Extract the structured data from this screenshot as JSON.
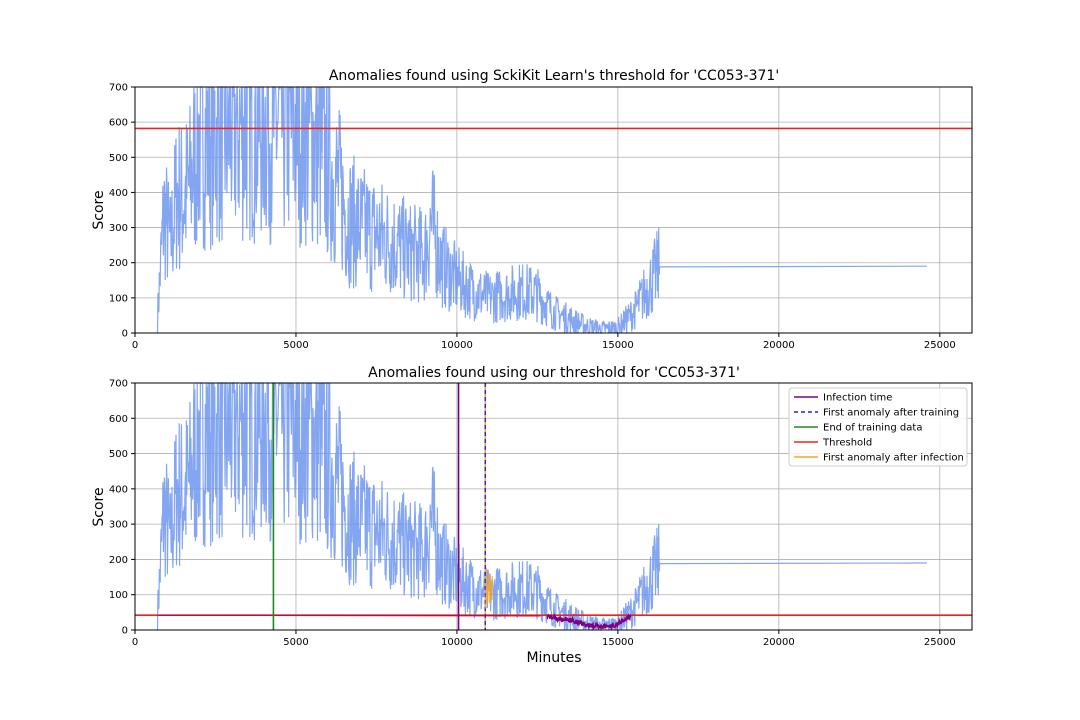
{
  "colors": {
    "score": "#6f97ee",
    "threshold": "#ee2222",
    "infection": "#800080",
    "first_after_training": "#2222ee",
    "end_training": "#228822",
    "first_after_infection": "#f5a623",
    "grid": "#b0b0b0"
  },
  "chart_data": [
    {
      "type": "line",
      "title": "Anomalies found using SckiKit Learn's threshold for 'CC053-371'",
      "xlabel": "",
      "ylabel": "Score",
      "xlim": [
        0,
        26000
      ],
      "ylim": [
        0,
        700
      ],
      "xticks": [
        "0",
        "5000",
        "10000",
        "15000",
        "20000",
        "25000"
      ],
      "yticks": [
        "0",
        "100",
        "200",
        "300",
        "400",
        "500",
        "600",
        "700"
      ],
      "grid": true,
      "threshold": 582,
      "series": [
        {
          "x": [
            700,
            900,
            1100,
            1300,
            1500,
            1700,
            2000,
            2500,
            3000,
            3500,
            4000,
            4500,
            5000,
            5500,
            6000,
            6300,
            6600,
            7000,
            7500,
            8000,
            8500,
            9000,
            9200,
            9500,
            10000,
            10500,
            11000,
            11500,
            12000,
            12500,
            13000,
            13500,
            14000,
            14500,
            15000,
            15500,
            16000,
            16300,
            20000,
            24600
          ],
          "y": [
            45,
            350,
            250,
            400,
            380,
            420,
            560,
            570,
            580,
            590,
            600,
            600,
            590,
            560,
            480,
            420,
            330,
            300,
            280,
            260,
            230,
            220,
            320,
            200,
            150,
            120,
            100,
            110,
            120,
            110,
            60,
            40,
            20,
            10,
            15,
            60,
            140,
            190,
            190,
            190
          ]
        }
      ]
    },
    {
      "type": "line",
      "title": "Anomalies found using our threshold for 'CC053-371'",
      "xlabel": "Minutes",
      "ylabel": "Score",
      "xlim": [
        0,
        26000
      ],
      "ylim": [
        0,
        700
      ],
      "xticks": [
        "0",
        "5000",
        "10000",
        "15000",
        "20000",
        "25000"
      ],
      "yticks": [
        "0",
        "100",
        "200",
        "300",
        "400",
        "500",
        "600",
        "700"
      ],
      "grid": true,
      "threshold": 42,
      "vlines": {
        "end_of_training": 4300,
        "infection_time": 10050,
        "first_anomaly_after_training": 10880,
        "first_anomaly_after_infection": 10880
      },
      "legend_position": "top-right",
      "legend": [
        {
          "label": "Infection time",
          "style": "solid",
          "color_key": "infection"
        },
        {
          "label": "First anomaly after training",
          "style": "dashed",
          "color_key": "first_after_training"
        },
        {
          "label": "End of training data",
          "style": "solid",
          "color_key": "end_training"
        },
        {
          "label": "Threshold",
          "style": "solid",
          "color_key": "threshold"
        },
        {
          "label": "First anomaly after infection",
          "style": "solid",
          "color_key": "first_after_infection"
        }
      ],
      "anomaly_points": {
        "x": [
          12800,
          13000,
          13200,
          13400,
          13600,
          13800,
          14000,
          14200,
          14400,
          14600,
          14800,
          15000,
          15200,
          15400
        ],
        "y": [
          40,
          35,
          30,
          30,
          25,
          20,
          15,
          12,
          10,
          10,
          12,
          18,
          28,
          40
        ]
      },
      "series": [
        {
          "x": [
            700,
            900,
            1100,
            1300,
            1500,
            1700,
            2000,
            2500,
            3000,
            3500,
            4000,
            4500,
            5000,
            5500,
            6000,
            6300,
            6600,
            7000,
            7500,
            8000,
            8500,
            9000,
            9200,
            9500,
            10000,
            10500,
            11000,
            11500,
            12000,
            12500,
            13000,
            13500,
            14000,
            14500,
            15000,
            15500,
            16000,
            16300,
            20000,
            24600
          ],
          "y": [
            45,
            350,
            250,
            400,
            380,
            420,
            560,
            570,
            580,
            590,
            600,
            600,
            590,
            560,
            480,
            420,
            330,
            300,
            280,
            260,
            230,
            220,
            320,
            200,
            150,
            120,
            100,
            110,
            120,
            110,
            60,
            40,
            20,
            10,
            15,
            60,
            140,
            190,
            190,
            190
          ]
        }
      ]
    }
  ]
}
